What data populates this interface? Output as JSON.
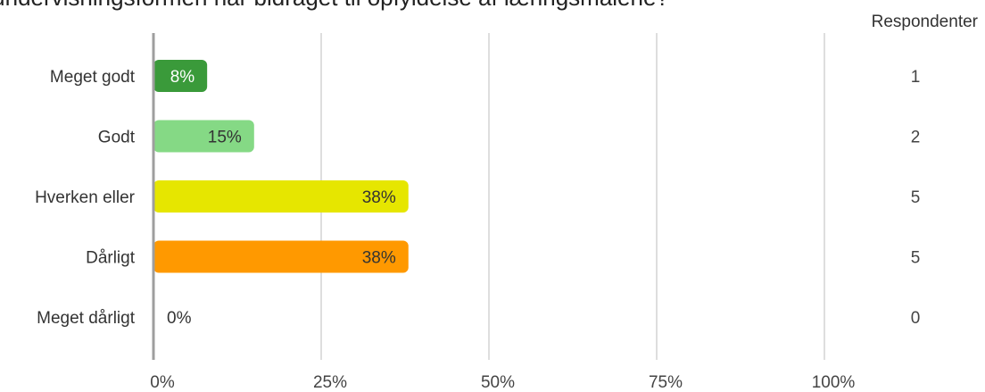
{
  "chart_data": {
    "type": "bar",
    "orientation": "horizontal",
    "title": "ad undervisningsformen har bidraget til opfyldelse af læringsmålene?",
    "categories": [
      "Meget godt",
      "Godt",
      "Hverken eller",
      "Dårligt",
      "Meget dårligt"
    ],
    "values": [
      8,
      15,
      38,
      38,
      0
    ],
    "value_labels": [
      "8%",
      "15%",
      "38%",
      "38%",
      "0%"
    ],
    "respondents_header": "Respondenter",
    "respondents": [
      "1",
      "2",
      "5",
      "5",
      "0"
    ],
    "bar_colors": [
      "#3a9a3a",
      "#85d985",
      "#e6e600",
      "#ff9900",
      "#cccccc"
    ],
    "xlim": [
      0,
      100
    ],
    "x_ticks": [
      0,
      25,
      50,
      75,
      100
    ],
    "x_tick_labels": [
      "0%",
      "25%",
      "50%",
      "75%",
      "100%"
    ],
    "grid": true
  }
}
